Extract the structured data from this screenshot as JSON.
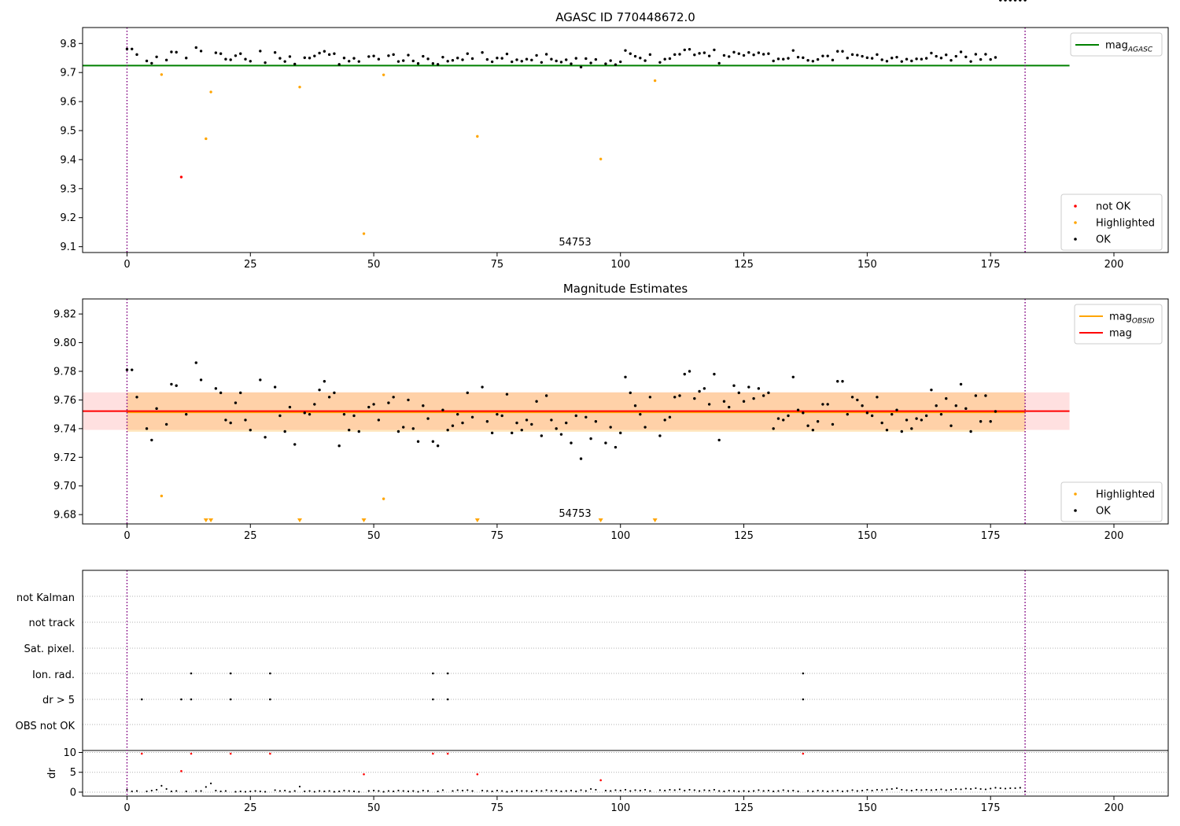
{
  "chart_data": [
    {
      "type": "scatter",
      "title": "AGASC ID 770448672.0",
      "xlim": [
        -9,
        211
      ],
      "ylim": [
        9.08,
        9.855
      ],
      "xticks": [
        0,
        25,
        50,
        75,
        100,
        125,
        150,
        175,
        200
      ],
      "yticks": [
        9.1,
        9.2,
        9.3,
        9.4,
        9.5,
        9.6,
        9.7,
        9.8
      ],
      "ytick_decimals": 1,
      "annotation": {
        "text": "54753",
        "x": 91,
        "y": 9.1
      },
      "vlines": [
        0,
        182
      ],
      "hline": {
        "label": "mag_AGASC",
        "value": 9.724,
        "x_range": [
          -9,
          191
        ],
        "color": "#008000"
      },
      "legend_top": [
        {
          "label": "mag",
          "sub": "AGASC",
          "color": "#008000",
          "kind": "line"
        }
      ],
      "legend_bottom": [
        {
          "label": "not OK",
          "color": "#ff0000",
          "kind": "dot"
        },
        {
          "label": "Highlighted",
          "color": "#ffa500",
          "kind": "dot"
        },
        {
          "label": "OK",
          "color": "#000000",
          "kind": "dot"
        }
      ],
      "series": [
        {
          "name": "not OK",
          "color": "#ff0000",
          "points": [
            [
              11,
              9.34
            ]
          ]
        },
        {
          "name": "Highlighted",
          "color": "#ffa500",
          "points": [
            [
              7,
              9.693
            ],
            [
              16,
              9.472
            ],
            [
              17,
              9.633
            ],
            [
              35,
              9.65
            ],
            [
              48,
              9.145
            ],
            [
              52,
              9.692
            ],
            [
              71,
              9.48
            ],
            [
              96,
              9.402
            ],
            [
              107,
              9.672
            ]
          ]
        }
      ]
    },
    {
      "type": "scatter",
      "title": "Magnitude Estimates",
      "xlim": [
        -9,
        211
      ],
      "ylim": [
        9.6735,
        9.8305
      ],
      "xticks": [
        0,
        25,
        50,
        75,
        100,
        125,
        150,
        175,
        200
      ],
      "yticks": [
        9.68,
        9.7,
        9.72,
        9.74,
        9.76,
        9.78,
        9.8,
        9.82
      ],
      "ytick_decimals": 2,
      "annotation": {
        "text": "54753",
        "x": 91,
        "y": 9.6805
      },
      "vlines": [
        0,
        182
      ],
      "band_mag": {
        "label": "mag",
        "center": 9.7522,
        "low": 9.7391,
        "high": 9.7653,
        "x_range": [
          -9,
          191
        ],
        "color": "#ff0000"
      },
      "band_obsid": {
        "label": "mag_OBSID",
        "center": 9.7515,
        "low": 9.7378,
        "high": 9.7653,
        "x_range": [
          0,
          182
        ],
        "color": "#ffa500"
      },
      "legend_top": [
        {
          "label": "mag",
          "sub": "OBSID",
          "color": "#ffa500",
          "kind": "line"
        },
        {
          "label": "mag",
          "sub": "",
          "color": "#ff0000",
          "kind": "line"
        }
      ],
      "legend_bottom": [
        {
          "label": "Highlighted",
          "color": "#ffa500",
          "kind": "dot"
        },
        {
          "label": "OK",
          "color": "#000000",
          "kind": "dot"
        }
      ],
      "highlighted_points": [
        [
          7,
          9.693
        ],
        [
          52,
          9.691
        ]
      ],
      "highlighted_offscale_x": [
        16,
        17,
        35,
        48,
        71,
        96,
        107
      ]
    },
    {
      "type": "scatter",
      "title": "",
      "xlim": [
        -9,
        211
      ],
      "xticks": [
        0,
        25,
        50,
        75,
        100,
        125,
        150,
        175,
        200
      ],
      "vlines": [
        0,
        182
      ],
      "flag_rows": [
        "not Kalman",
        "not track",
        "Sat. pixel.",
        "Ion. rad.",
        "dr > 5",
        "OBS not OK"
      ],
      "flags": {
        "Ion. rad.": [
          13,
          21,
          29,
          62,
          65,
          137
        ],
        "dr > 5": [
          3,
          11,
          13,
          21,
          29,
          62,
          65,
          137
        ]
      },
      "dr_ylabel": "dr",
      "dr_yticks": [
        0,
        5,
        10
      ],
      "dr_ylim": [
        -1,
        10.5
      ],
      "dr_red_points": [
        [
          3,
          9.7
        ],
        [
          11,
          5.3
        ],
        [
          13,
          9.7
        ],
        [
          21,
          9.7
        ],
        [
          29,
          9.7
        ],
        [
          48,
          4.5
        ],
        [
          62,
          9.7
        ],
        [
          65,
          9.7
        ],
        [
          71,
          4.5
        ],
        [
          96,
          3.0
        ],
        [
          137,
          9.7
        ]
      ],
      "dr_black_points": [
        [
          0,
          0.6
        ],
        [
          1,
          0.2
        ],
        [
          2,
          0.3
        ],
        [
          4,
          0.2
        ],
        [
          5,
          0.4
        ],
        [
          6,
          0.6
        ],
        [
          7,
          1.6
        ],
        [
          8,
          0.8
        ],
        [
          9,
          0.2
        ],
        [
          10,
          0.3
        ],
        [
          12,
          0.2
        ],
        [
          14,
          0.3
        ],
        [
          15,
          0.3
        ],
        [
          16,
          1.3
        ],
        [
          17,
          2.2
        ],
        [
          18,
          0.4
        ],
        [
          19,
          0.2
        ],
        [
          20,
          0.3
        ],
        [
          22,
          0.1
        ],
        [
          23,
          0.2
        ],
        [
          24,
          0.1
        ],
        [
          25,
          0.2
        ],
        [
          26,
          0.3
        ],
        [
          27,
          0.2
        ],
        [
          28,
          0.1
        ],
        [
          30,
          0.5
        ],
        [
          31,
          0.3
        ],
        [
          32,
          0.4
        ],
        [
          33,
          0.1
        ],
        [
          34,
          0.3
        ],
        [
          35,
          1.4
        ],
        [
          36,
          0.2
        ],
        [
          37,
          0.3
        ],
        [
          38,
          0.1
        ],
        [
          39,
          0.3
        ],
        [
          40,
          0.2
        ],
        [
          41,
          0.3
        ],
        [
          42,
          0.1
        ],
        [
          43,
          0.2
        ],
        [
          44,
          0.4
        ],
        [
          45,
          0.3
        ],
        [
          46,
          0.2
        ],
        [
          47,
          0.1
        ],
        [
          49,
          0.3
        ],
        [
          50,
          0.4
        ],
        [
          51,
          0.3
        ],
        [
          52,
          0.1
        ],
        [
          53,
          0.3
        ],
        [
          54,
          0.2
        ],
        [
          55,
          0.4
        ],
        [
          56,
          0.3
        ],
        [
          57,
          0.2
        ],
        [
          58,
          0.3
        ],
        [
          59,
          0.1
        ],
        [
          60,
          0.4
        ],
        [
          61,
          0.3
        ],
        [
          63,
          0.2
        ],
        [
          64,
          0.5
        ],
        [
          66,
          0.3
        ],
        [
          67,
          0.5
        ],
        [
          68,
          0.4
        ],
        [
          69,
          0.5
        ],
        [
          70,
          0.3
        ],
        [
          72,
          0.4
        ],
        [
          73,
          0.3
        ],
        [
          74,
          0.2
        ],
        [
          75,
          0.4
        ],
        [
          76,
          0.3
        ],
        [
          77,
          0.1
        ],
        [
          78,
          0.2
        ],
        [
          79,
          0.4
        ],
        [
          80,
          0.3
        ],
        [
          81,
          0.3
        ],
        [
          82,
          0.2
        ],
        [
          83,
          0.4
        ],
        [
          84,
          0.3
        ],
        [
          85,
          0.5
        ],
        [
          86,
          0.3
        ],
        [
          87,
          0.4
        ],
        [
          88,
          0.2
        ],
        [
          89,
          0.3
        ],
        [
          90,
          0.4
        ],
        [
          91,
          0.2
        ],
        [
          92,
          0.5
        ],
        [
          93,
          0.3
        ],
        [
          94,
          0.8
        ],
        [
          95,
          0.6
        ],
        [
          97,
          0.4
        ],
        [
          98,
          0.3
        ],
        [
          99,
          0.5
        ],
        [
          100,
          0.4
        ],
        [
          101,
          0.6
        ],
        [
          102,
          0.3
        ],
        [
          103,
          0.5
        ],
        [
          104,
          0.4
        ],
        [
          105,
          0.6
        ],
        [
          106,
          0.3
        ],
        [
          108,
          0.5
        ],
        [
          109,
          0.4
        ],
        [
          110,
          0.6
        ],
        [
          111,
          0.5
        ],
        [
          112,
          0.7
        ],
        [
          113,
          0.4
        ],
        [
          114,
          0.6
        ],
        [
          115,
          0.5
        ],
        [
          116,
          0.3
        ],
        [
          117,
          0.5
        ],
        [
          118,
          0.4
        ],
        [
          119,
          0.6
        ],
        [
          120,
          0.3
        ],
        [
          121,
          0.2
        ],
        [
          122,
          0.4
        ],
        [
          123,
          0.3
        ],
        [
          124,
          0.2
        ],
        [
          125,
          0.3
        ],
        [
          126,
          0.2
        ],
        [
          127,
          0.3
        ],
        [
          128,
          0.5
        ],
        [
          129,
          0.3
        ],
        [
          130,
          0.4
        ],
        [
          131,
          0.2
        ],
        [
          132,
          0.3
        ],
        [
          133,
          0.5
        ],
        [
          134,
          0.3
        ],
        [
          135,
          0.4
        ],
        [
          136,
          0.2
        ],
        [
          138,
          0.3
        ],
        [
          139,
          0.2
        ],
        [
          140,
          0.4
        ],
        [
          141,
          0.3
        ],
        [
          142,
          0.2
        ],
        [
          143,
          0.3
        ],
        [
          144,
          0.4
        ],
        [
          145,
          0.2
        ],
        [
          146,
          0.3
        ],
        [
          147,
          0.5
        ],
        [
          148,
          0.3
        ],
        [
          149,
          0.4
        ],
        [
          150,
          0.6
        ],
        [
          151,
          0.4
        ],
        [
          152,
          0.6
        ],
        [
          153,
          0.5
        ],
        [
          154,
          0.7
        ],
        [
          155,
          0.8
        ],
        [
          156,
          1.0
        ],
        [
          157,
          0.6
        ],
        [
          158,
          0.5
        ],
        [
          159,
          0.4
        ],
        [
          160,
          0.6
        ],
        [
          161,
          0.5
        ],
        [
          162,
          0.6
        ],
        [
          163,
          0.5
        ],
        [
          164,
          0.6
        ],
        [
          165,
          0.7
        ],
        [
          166,
          0.5
        ],
        [
          167,
          0.6
        ],
        [
          168,
          0.8
        ],
        [
          169,
          0.7
        ],
        [
          170,
          0.9
        ],
        [
          171,
          0.8
        ],
        [
          172,
          1.0
        ],
        [
          173,
          0.8
        ],
        [
          174,
          0.7
        ],
        [
          175,
          0.9
        ],
        [
          176,
          1.1
        ],
        [
          177,
          1.0
        ],
        [
          178,
          0.9
        ],
        [
          179,
          1.0
        ],
        [
          180,
          1.0
        ],
        [
          181,
          1.1
        ],
        [
          182,
          0.2
        ]
      ]
    }
  ],
  "ok_magnitudes": [
    9.781,
    9.781,
    9.762,
    9.74,
    9.732,
    9.754,
    9.743,
    9.771,
    9.77,
    9.75,
    9.786,
    9.774,
    9.768,
    9.765,
    9.746,
    9.744,
    9.758,
    9.765,
    9.746,
    9.739,
    9.774,
    9.734,
    9.769,
    9.749,
    9.738,
    9.755,
    9.729,
    9.751,
    9.75,
    9.757,
    9.767,
    9.773,
    9.762,
    9.765,
    9.728,
    9.75,
    9.739,
    9.749,
    9.738,
    9.755,
    9.757,
    9.746,
    9.758,
    9.762,
    9.738,
    9.741,
    9.76,
    9.74,
    9.731,
    9.756,
    9.747,
    9.731,
    9.728,
    9.753,
    9.739,
    9.742,
    9.75,
    9.744,
    9.765,
    9.748,
    9.769,
    9.745,
    9.737,
    9.75,
    9.749,
    9.764,
    9.737,
    9.744,
    9.739,
    9.746,
    9.743,
    9.759,
    9.735,
    9.763,
    9.746,
    9.74,
    9.736,
    9.744,
    9.73,
    9.749,
    9.719,
    9.748,
    9.733,
    9.745,
    9.73,
    9.741,
    9.727,
    9.737,
    9.776,
    9.765,
    9.756,
    9.75,
    9.741,
    9.762,
    9.735,
    9.746,
    9.748,
    9.762,
    9.763,
    9.778,
    9.78,
    9.761,
    9.766,
    9.768,
    9.757,
    9.778,
    9.732,
    9.759,
    9.755,
    9.77,
    9.765,
    9.759,
    9.769,
    9.761,
    9.768,
    9.763,
    9.765,
    9.74,
    9.747,
    9.746,
    9.749,
    9.776,
    9.753,
    9.751,
    9.742,
    9.739,
    9.745,
    9.757,
    9.757,
    9.743,
    9.773,
    9.773,
    9.75,
    9.762,
    9.76,
    9.756,
    9.751,
    9.749,
    9.762,
    9.744,
    9.739,
    9.75,
    9.753,
    9.738,
    9.746,
    9.74,
    9.747,
    9.746,
    9.749,
    9.767,
    9.756,
    9.75,
    9.761,
    9.742,
    9.756,
    9.771,
    9.754,
    9.738,
    9.763,
    9.745,
    9.763,
    9.745,
    9.752
  ],
  "ok_indices": [
    0,
    1,
    2,
    4,
    5,
    6,
    8,
    9,
    10,
    12,
    14,
    15,
    18,
    19,
    20,
    21,
    22,
    23,
    24,
    25,
    27,
    28,
    30,
    31,
    32,
    33,
    34,
    36,
    37,
    38,
    39,
    40,
    41,
    42,
    43,
    44,
    45,
    46,
    47,
    49,
    50,
    51,
    53,
    54,
    55,
    56,
    57,
    58,
    59,
    60,
    61,
    62,
    63,
    64,
    65,
    66,
    67,
    68,
    69,
    70,
    72,
    73,
    74,
    75,
    76,
    77,
    78,
    79,
    80,
    81,
    82,
    83,
    84,
    85,
    86,
    87,
    88,
    89,
    90,
    91,
    92,
    93,
    94,
    95,
    97,
    98,
    99,
    100,
    101,
    102,
    103,
    104,
    105,
    106,
    108,
    109,
    110,
    111,
    112,
    113,
    114,
    115,
    116,
    117,
    118,
    119,
    120,
    121,
    122,
    123,
    124,
    125,
    126,
    127,
    128,
    129,
    130,
    131,
    132,
    133,
    134,
    135,
    136,
    137,
    138,
    139,
    140,
    141,
    142,
    143,
    144,
    145,
    146,
    147,
    148,
    149,
    150,
    151,
    152,
    153,
    154,
    155,
    156,
    157,
    158,
    159,
    160,
    161,
    162,
    163,
    164,
    165,
    166,
    167,
    168,
    169,
    170,
    171,
    172,
    173,
    174,
    175,
    176,
    177,
    178,
    179,
    180,
    181,
    182
  ]
}
